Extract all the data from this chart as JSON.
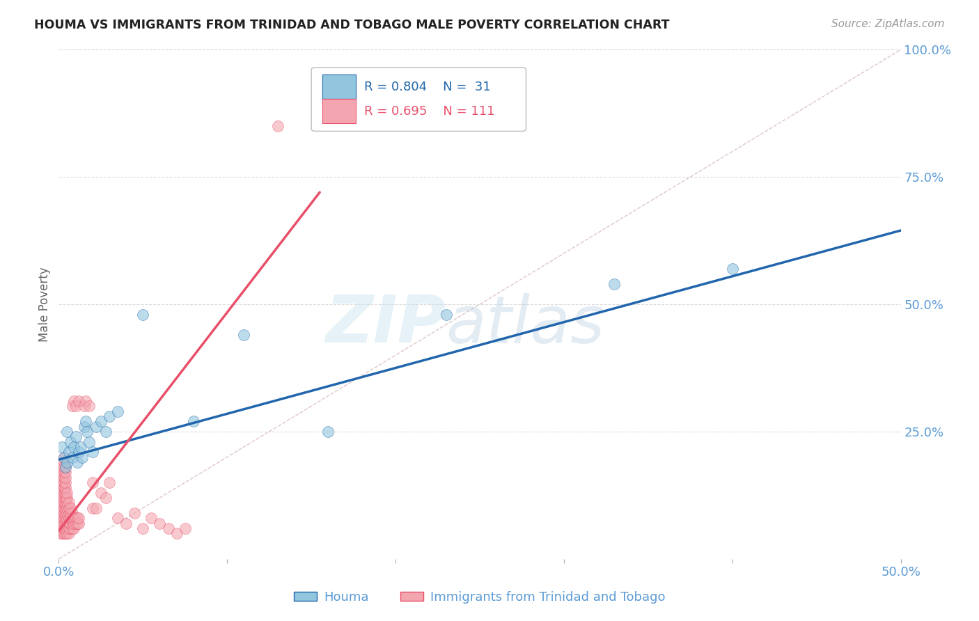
{
  "title": "HOUMA VS IMMIGRANTS FROM TRINIDAD AND TOBAGO MALE POVERTY CORRELATION CHART",
  "source": "Source: ZipAtlas.com",
  "ylabel": "Male Poverty",
  "xlim": [
    0.0,
    0.5
  ],
  "ylim": [
    0.0,
    1.0
  ],
  "houma_color": "#92C5DE",
  "tt_color": "#F4A6B0",
  "houma_line_color": "#2166AC",
  "tt_line_color": "#E8506A",
  "diagonal_color": "#C8A0A0",
  "background_color": "#FFFFFF",
  "grid_color": "#CCCCCC",
  "axis_color": "#5B9BD5",
  "legend_R_houma": "0.804",
  "legend_N_houma": "31",
  "legend_R_tt": "0.695",
  "legend_N_tt": "111"
}
